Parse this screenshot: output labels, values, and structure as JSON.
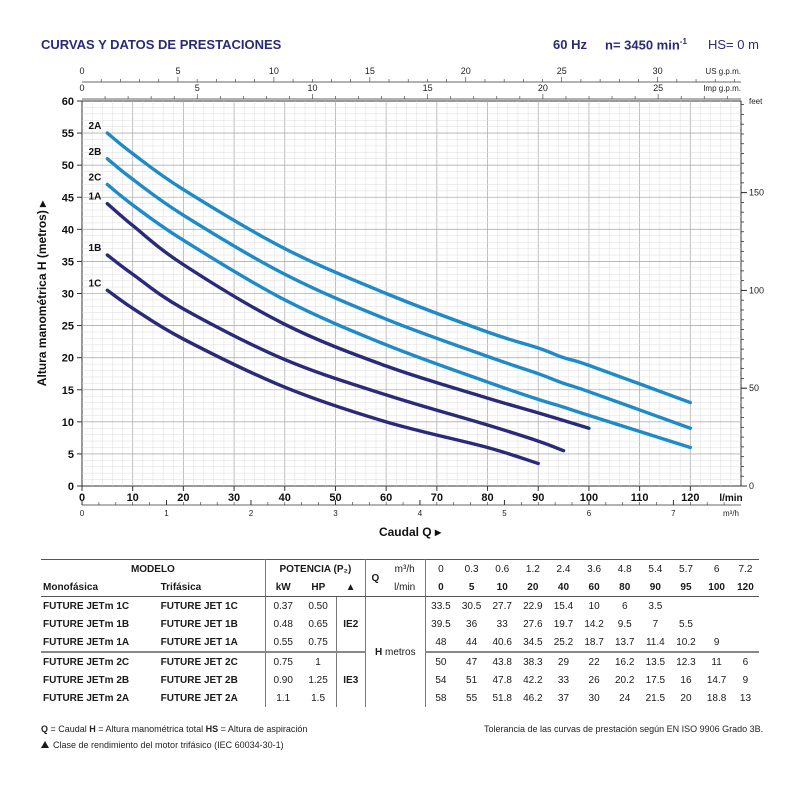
{
  "header": {
    "title": "CURVAS Y DATOS DE PRESTACIONES",
    "freq": "60 Hz",
    "speed": "n= 3450 min",
    "speed_sup": "-1",
    "hs": "HS= 0 m"
  },
  "chart_data": {
    "type": "line",
    "title": "CURVAS Y DATOS DE PRESTACIONES",
    "xlabel": "Caudal  Q",
    "ylabel": "Altura manométrica  H (metros)",
    "x_unit": "l/min",
    "x_unit2": "m³/h",
    "y_unit2": "feet",
    "us_unit": "US g.p.m.",
    "imp_unit": "Imp g.p.m.",
    "xlim": [
      0,
      130
    ],
    "ylim": [
      0,
      60
    ],
    "x_ticks": [
      0,
      10,
      20,
      30,
      40,
      50,
      60,
      70,
      80,
      90,
      100,
      110,
      120
    ],
    "y_ticks": [
      0,
      5,
      10,
      15,
      20,
      25,
      30,
      35,
      40,
      45,
      50,
      55,
      60
    ],
    "feet_ticks": [
      0,
      50,
      100,
      150
    ],
    "m3h_ticks": [
      0,
      1,
      2,
      3,
      4,
      5,
      6,
      7
    ],
    "us_gpm_ticks": [
      0,
      5,
      10,
      15,
      20,
      25,
      30
    ],
    "imp_gpm_ticks": [
      0,
      5,
      10,
      15,
      20,
      25
    ],
    "series": [
      {
        "name": "2A",
        "color": "#1f8ac8",
        "x": [
          5,
          10,
          20,
          40,
          60,
          80,
          90,
          95,
          100,
          120
        ],
        "y": [
          55,
          51.8,
          46.2,
          37,
          30,
          24,
          21.5,
          20,
          18.8,
          13
        ]
      },
      {
        "name": "2B",
        "color": "#1f8ac8",
        "x": [
          5,
          10,
          20,
          40,
          60,
          80,
          90,
          95,
          100,
          120
        ],
        "y": [
          51,
          47.8,
          42.2,
          33,
          26,
          20.2,
          17.5,
          16,
          14.7,
          9
        ]
      },
      {
        "name": "2C",
        "color": "#1f8ac8",
        "x": [
          5,
          10,
          20,
          40,
          60,
          80,
          90,
          95,
          100,
          120
        ],
        "y": [
          47,
          43.8,
          38.3,
          29,
          22,
          16.2,
          13.5,
          12.3,
          11,
          6
        ]
      },
      {
        "name": "1A",
        "color": "#2a2a7a",
        "x": [
          5,
          10,
          20,
          40,
          60,
          80,
          90,
          100
        ],
        "y": [
          44,
          40.6,
          34.5,
          25.2,
          18.7,
          13.7,
          11.4,
          9
        ]
      },
      {
        "name": "1B",
        "color": "#2a2a7a",
        "x": [
          5,
          10,
          20,
          40,
          60,
          80,
          90,
          95
        ],
        "y": [
          36,
          33,
          27.6,
          19.7,
          14.2,
          9.5,
          7,
          5.5
        ]
      },
      {
        "name": "1C",
        "color": "#2a2a7a",
        "x": [
          5,
          10,
          20,
          40,
          60,
          80,
          90
        ],
        "y": [
          30.5,
          27.7,
          22.9,
          15.4,
          10,
          6,
          3.5
        ]
      }
    ]
  },
  "table": {
    "modelo": "MODELO",
    "potencia": "POTENCIA (P₂)",
    "monofasica": "Monofásica",
    "trifasica": "Trifásica",
    "kw": "kW",
    "hp": "HP",
    "q": "Q",
    "q_unit1": "m³/h",
    "q_unit2": "l/min",
    "h": "H",
    "metros": "metros",
    "q_m3h": [
      "0",
      "0.3",
      "0.6",
      "1.2",
      "2.4",
      "3.6",
      "4.8",
      "5.4",
      "5.7",
      "6",
      "7.2"
    ],
    "q_lmin": [
      "0",
      "5",
      "10",
      "20",
      "40",
      "60",
      "80",
      "90",
      "95",
      "100",
      "120"
    ],
    "ie2": "IE2",
    "ie3": "IE3",
    "rows": [
      {
        "mono": "FUTURE JETm 1C",
        "tri": "FUTURE JET 1C",
        "kw": "0.37",
        "hp": "0.50",
        "h": [
          "33.5",
          "30.5",
          "27.7",
          "22.9",
          "15.4",
          "10",
          "6",
          "3.5",
          "",
          "",
          ""
        ]
      },
      {
        "mono": "FUTURE JETm 1B",
        "tri": "FUTURE JET 1B",
        "kw": "0.48",
        "hp": "0.65",
        "h": [
          "39.5",
          "36",
          "33",
          "27.6",
          "19.7",
          "14.2",
          "9.5",
          "7",
          "5.5",
          "",
          ""
        ]
      },
      {
        "mono": "FUTURE JETm 1A",
        "tri": "FUTURE JET 1A",
        "kw": "0.55",
        "hp": "0.75",
        "h": [
          "48",
          "44",
          "40.6",
          "34.5",
          "25.2",
          "18.7",
          "13.7",
          "11.4",
          "10.2",
          "9",
          ""
        ]
      },
      {
        "mono": "FUTURE JETm 2C",
        "tri": "FUTURE JET 2C",
        "kw": "0.75",
        "hp": "1",
        "h": [
          "50",
          "47",
          "43.8",
          "38.3",
          "29",
          "22",
          "16.2",
          "13.5",
          "12.3",
          "11",
          "6"
        ]
      },
      {
        "mono": "FUTURE JETm 2B",
        "tri": "FUTURE JET 2B",
        "kw": "0.90",
        "hp": "1.25",
        "h": [
          "54",
          "51",
          "47.8",
          "42.2",
          "33",
          "26",
          "20.2",
          "17.5",
          "16",
          "14.7",
          "9"
        ]
      },
      {
        "mono": "FUTURE JETm 2A",
        "tri": "FUTURE JET 2A",
        "kw": "1.1",
        "hp": "1.5",
        "h": [
          "58",
          "55",
          "51.8",
          "46.2",
          "37",
          "30",
          "24",
          "21.5",
          "20",
          "18.8",
          "13"
        ]
      }
    ]
  },
  "footer": {
    "legend_q": "Q",
    "legend_q_text": " = Caudal   ",
    "legend_h": "H",
    "legend_h_text": " = Altura manométrica total   ",
    "legend_hs": "HS",
    "legend_hs_text": " = Altura de aspiración",
    "note": "Clase de rendimiento del motor trifásico (IEC 60034-30-1)",
    "tolerance": "Tolerancia de las curvas de prestación según EN ISO 9906 Grado 3B."
  }
}
